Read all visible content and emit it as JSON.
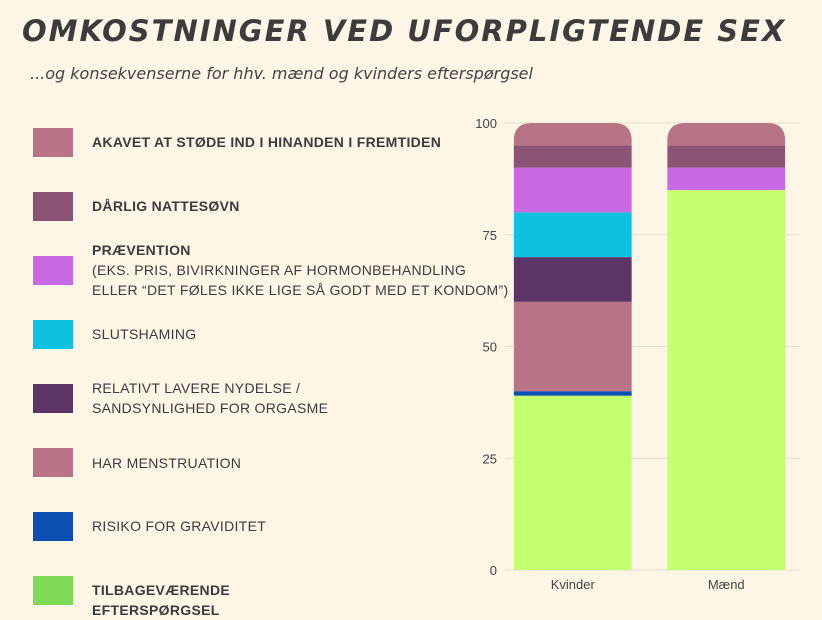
{
  "title": "OMKOSTNINGER VED UFORPLIGTENDE SEX",
  "subtitle": "...og konsekvenserne for hhv. mænd og kvinders efterspørgsel",
  "legend": [
    {
      "key": "akavet",
      "bold": "AKAVET AT STØDE IND I HINANDEN I FREMTIDEN",
      "lines": [],
      "color": "#b87385"
    },
    {
      "key": "nattesovn",
      "bold": "DÅRLIG NATTESØVN",
      "lines": [],
      "color": "#8d5374"
    },
    {
      "key": "praevention",
      "bold": "PRÆVENTION",
      "lines": [
        "(EKS. PRIS, BIVIRKNINGER AF HORMONBEHANDLING",
        "ELLER “DET FØLES IKKE LIGE SÅ GODT MED ET KONDOM”)"
      ],
      "color": "#c968e3"
    },
    {
      "key": "slutshaming",
      "bold": "",
      "lines": [
        "SLUTSHAMING"
      ],
      "color": "#0dc2e0"
    },
    {
      "key": "nydelse",
      "bold": "",
      "lines": [
        "RELATIVT LAVERE NYDELSE /",
        "SANDSYNLIGHED FOR ORGASME"
      ],
      "color": "#5c3566"
    },
    {
      "key": "menstruation",
      "bold": "",
      "lines": [
        "HAR MENSTRUATION"
      ],
      "color": "#b87385"
    },
    {
      "key": "graviditet",
      "bold": "",
      "lines": [
        "RISIKO FOR GRAVIDITET"
      ],
      "color": "#0b4fb3"
    },
    {
      "key": "tilbage",
      "bold": "TILBAGEVÆRENDE EFTERSPØRGSEL",
      "lines": [],
      "color": "#7edb55"
    }
  ],
  "chart_data": {
    "type": "bar",
    "stacked": true,
    "categories": [
      "Kvinder",
      "Mænd"
    ],
    "ylim": [
      0,
      100
    ],
    "yticks": [
      "0",
      "25",
      "50",
      "75",
      "100"
    ],
    "grid": true,
    "series": [
      {
        "name": "TILBAGEVÆRENDE EFTERSPØRGSEL",
        "color": "#c4ff6e",
        "values": [
          39,
          85
        ]
      },
      {
        "name": "RISIKO FOR GRAVIDITET",
        "color": "#0b4fb3",
        "values": [
          1,
          0
        ]
      },
      {
        "name": "HAR MENSTRUATION",
        "color": "#b87385",
        "values": [
          20,
          0
        ]
      },
      {
        "name": "RELATIVT LAVERE NYDELSE / SANDSYNLIGHED FOR ORGASME",
        "color": "#5c3566",
        "values": [
          10,
          0
        ]
      },
      {
        "name": "SLUTSHAMING",
        "color": "#0dc2e0",
        "values": [
          10,
          0
        ]
      },
      {
        "name": "PRÆVENTION",
        "color": "#c968e3",
        "values": [
          10,
          5
        ]
      },
      {
        "name": "DÅRLIG NATTESØVN",
        "color": "#8d5374",
        "values": [
          5,
          5
        ]
      },
      {
        "name": "AKAVET AT STØDE IND I HINANDEN I FREMTIDEN",
        "color": "#b87385",
        "values": [
          5,
          5
        ]
      }
    ]
  }
}
